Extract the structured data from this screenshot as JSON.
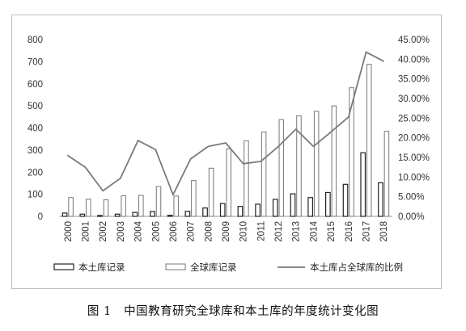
{
  "chart_data": {
    "type": "bar",
    "categories": [
      "2000",
      "2001",
      "2002",
      "2003",
      "2004",
      "2005",
      "2006",
      "2007",
      "2008",
      "2009",
      "2010",
      "2011",
      "2012",
      "2013",
      "2014",
      "2015",
      "2016",
      "2017",
      "2018"
    ],
    "series": [
      {
        "name": "本土库记录",
        "kind": "bar",
        "axis": "left",
        "values": [
          15,
          10,
          4,
          10,
          18,
          22,
          5,
          23,
          38,
          58,
          45,
          55,
          77,
          102,
          85,
          108,
          145,
          288,
          152
        ]
      },
      {
        "name": "全球库记录",
        "kind": "bar",
        "axis": "left",
        "values": [
          85,
          78,
          75,
          93,
          95,
          135,
          92,
          162,
          218,
          305,
          342,
          382,
          438,
          455,
          475,
          500,
          582,
          688,
          385
        ]
      },
      {
        "name": "本土库占全球库的比例",
        "kind": "line",
        "axis": "right",
        "values": [
          0.155,
          0.125,
          0.065,
          0.097,
          0.193,
          0.17,
          0.055,
          0.146,
          0.178,
          0.187,
          0.134,
          0.14,
          0.178,
          0.222,
          0.178,
          0.215,
          0.253,
          0.418,
          0.395
        ]
      }
    ],
    "y_left": {
      "min": 0,
      "max": 800,
      "ticks": [
        "0",
        "100",
        "200",
        "300",
        "400",
        "500",
        "600",
        "700",
        "800"
      ]
    },
    "y_right": {
      "min": 0,
      "max": 0.45,
      "ticks": [
        "0.00%",
        "5.00%",
        "10.00%",
        "15.00%",
        "20.00%",
        "25.00%",
        "30.00%",
        "35.00%",
        "40.00%",
        "45.00%"
      ]
    },
    "legend_position": "bottom",
    "grid": false,
    "colors": {
      "local_bar": "#222222",
      "global_bar": "#777777",
      "line": "#7a7a7a",
      "axis": "#999999"
    }
  },
  "caption": "图 1   中国教育研究全球库和本土库的年度统计变化图"
}
